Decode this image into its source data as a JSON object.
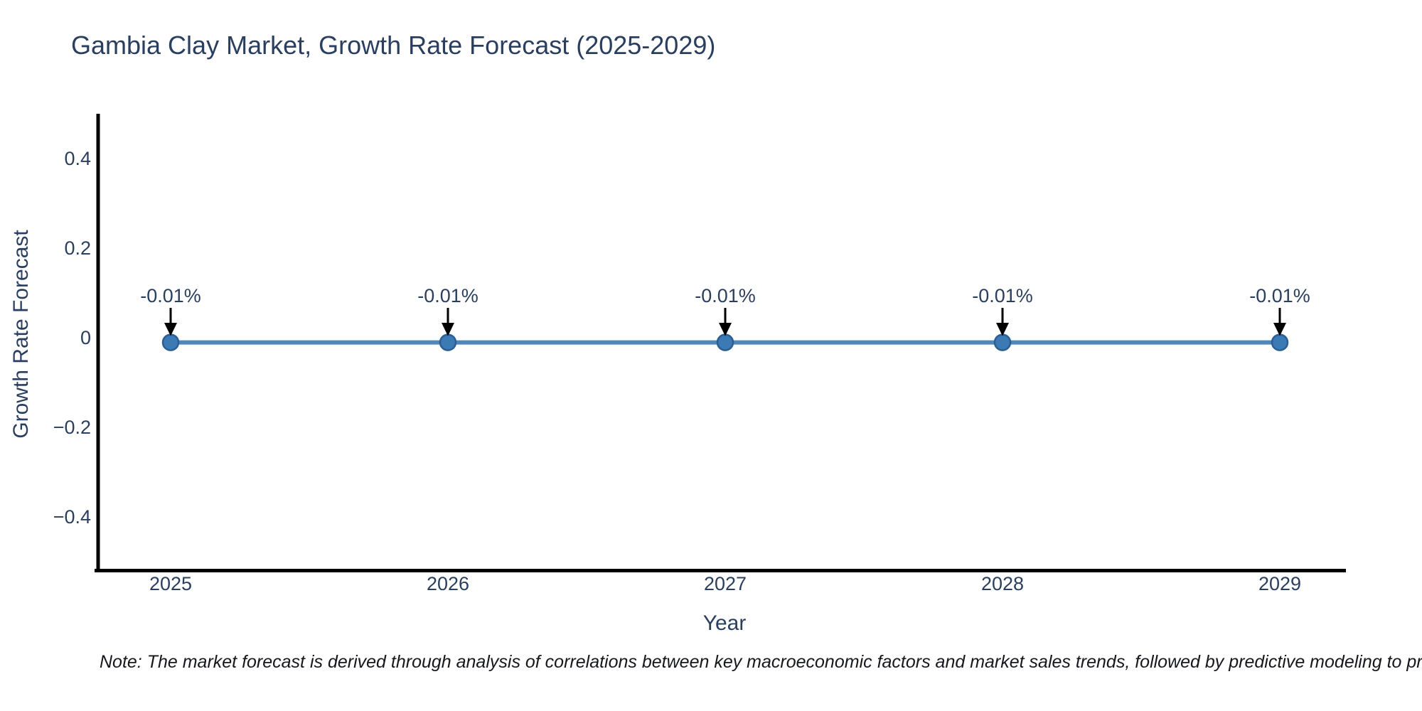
{
  "chart": {
    "title": "Gambia Clay Market, Growth Rate Forecast (2025-2029)",
    "xlabel": "Year",
    "ylabel": "Growth Rate Forecast"
  },
  "note": {
    "text": "Note: The market forecast is derived through analysis of correlations between key macroeconomic factors and market sales trends, followed by predictive modeling to project future sales"
  },
  "chart_data": {
    "type": "line",
    "title": "Gambia Clay Market, Growth Rate Forecast (2025-2029)",
    "xlabel": "Year",
    "ylabel": "Growth Rate Forecast",
    "x": [
      2025,
      2026,
      2027,
      2028,
      2029
    ],
    "series": [
      {
        "name": "Growth Rate Forecast",
        "values": [
          -0.01,
          -0.01,
          -0.01,
          -0.01,
          -0.01
        ]
      }
    ],
    "point_labels": [
      "-0.01%",
      "-0.01%",
      "-0.01%",
      "-0.01%",
      "-0.01%"
    ],
    "x_tick_labels": [
      "2025",
      "2026",
      "2027",
      "2028",
      "2029"
    ],
    "y_tick_values": [
      0.4,
      0.2,
      0,
      -0.2,
      -0.4
    ],
    "y_tick_labels": [
      "0.4",
      "0.2",
      "0",
      "−0.2",
      "−0.4"
    ],
    "ylim": [
      -0.515,
      0.5
    ],
    "xlim": [
      2024.74,
      2029.23
    ],
    "grid": false,
    "legend": "none",
    "colors": {
      "line": "#4f87ba",
      "marker_fill": "#3c7ab6",
      "marker_edge": "#2b5f93",
      "axis": "#000000",
      "text": "#2a3f5f",
      "annotation_arrow": "#000000",
      "note_text": "#16181d"
    }
  }
}
